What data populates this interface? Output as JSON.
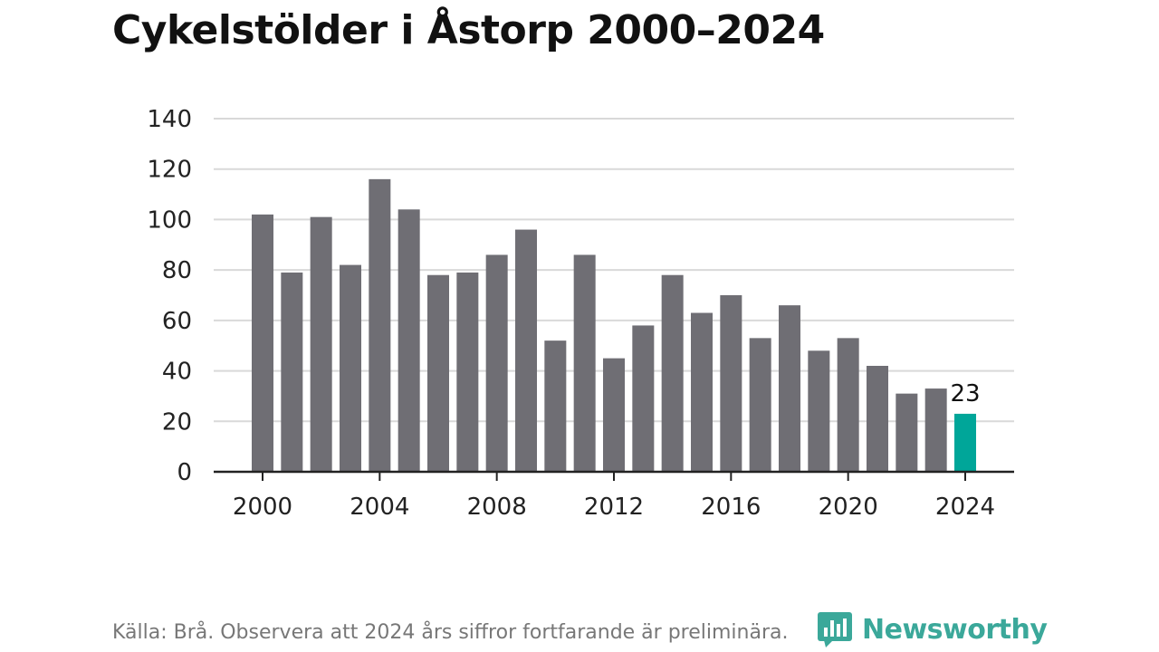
{
  "chart_data": {
    "type": "bar",
    "title": "Cykelstölder i Åstorp 2000–2024",
    "xlabel": "",
    "ylabel": "",
    "categories": [
      "2000",
      "2001",
      "2002",
      "2003",
      "2004",
      "2005",
      "2006",
      "2007",
      "2008",
      "2009",
      "2010",
      "2011",
      "2012",
      "2013",
      "2014",
      "2015",
      "2016",
      "2017",
      "2018",
      "2019",
      "2020",
      "2021",
      "2022",
      "2023",
      "2024"
    ],
    "values": [
      102,
      79,
      101,
      82,
      116,
      104,
      78,
      79,
      86,
      96,
      52,
      86,
      45,
      58,
      78,
      63,
      70,
      53,
      66,
      48,
      53,
      42,
      31,
      33,
      23
    ],
    "x_tick_labels": [
      "2000",
      "2004",
      "2008",
      "2012",
      "2016",
      "2020",
      "2024"
    ],
    "y_ticks": [
      0,
      20,
      40,
      60,
      80,
      100,
      120,
      140
    ],
    "ylim": [
      0,
      140
    ],
    "grid": true,
    "data_labels": [
      {
        "category": "2024",
        "text": "23"
      }
    ],
    "highlight_category": "2024",
    "colors": {
      "bar": "#6f6e74",
      "highlight": "#00a699",
      "grid": "#d9d9d9",
      "axis": "#222222"
    }
  },
  "footer": {
    "source": "Källa: Brå. Observera att 2024 års siffror fortfarande är preliminära."
  },
  "brand": {
    "name": "Newsworthy",
    "icon": "newsworthy-logo-icon",
    "color": "#3ba89a"
  }
}
